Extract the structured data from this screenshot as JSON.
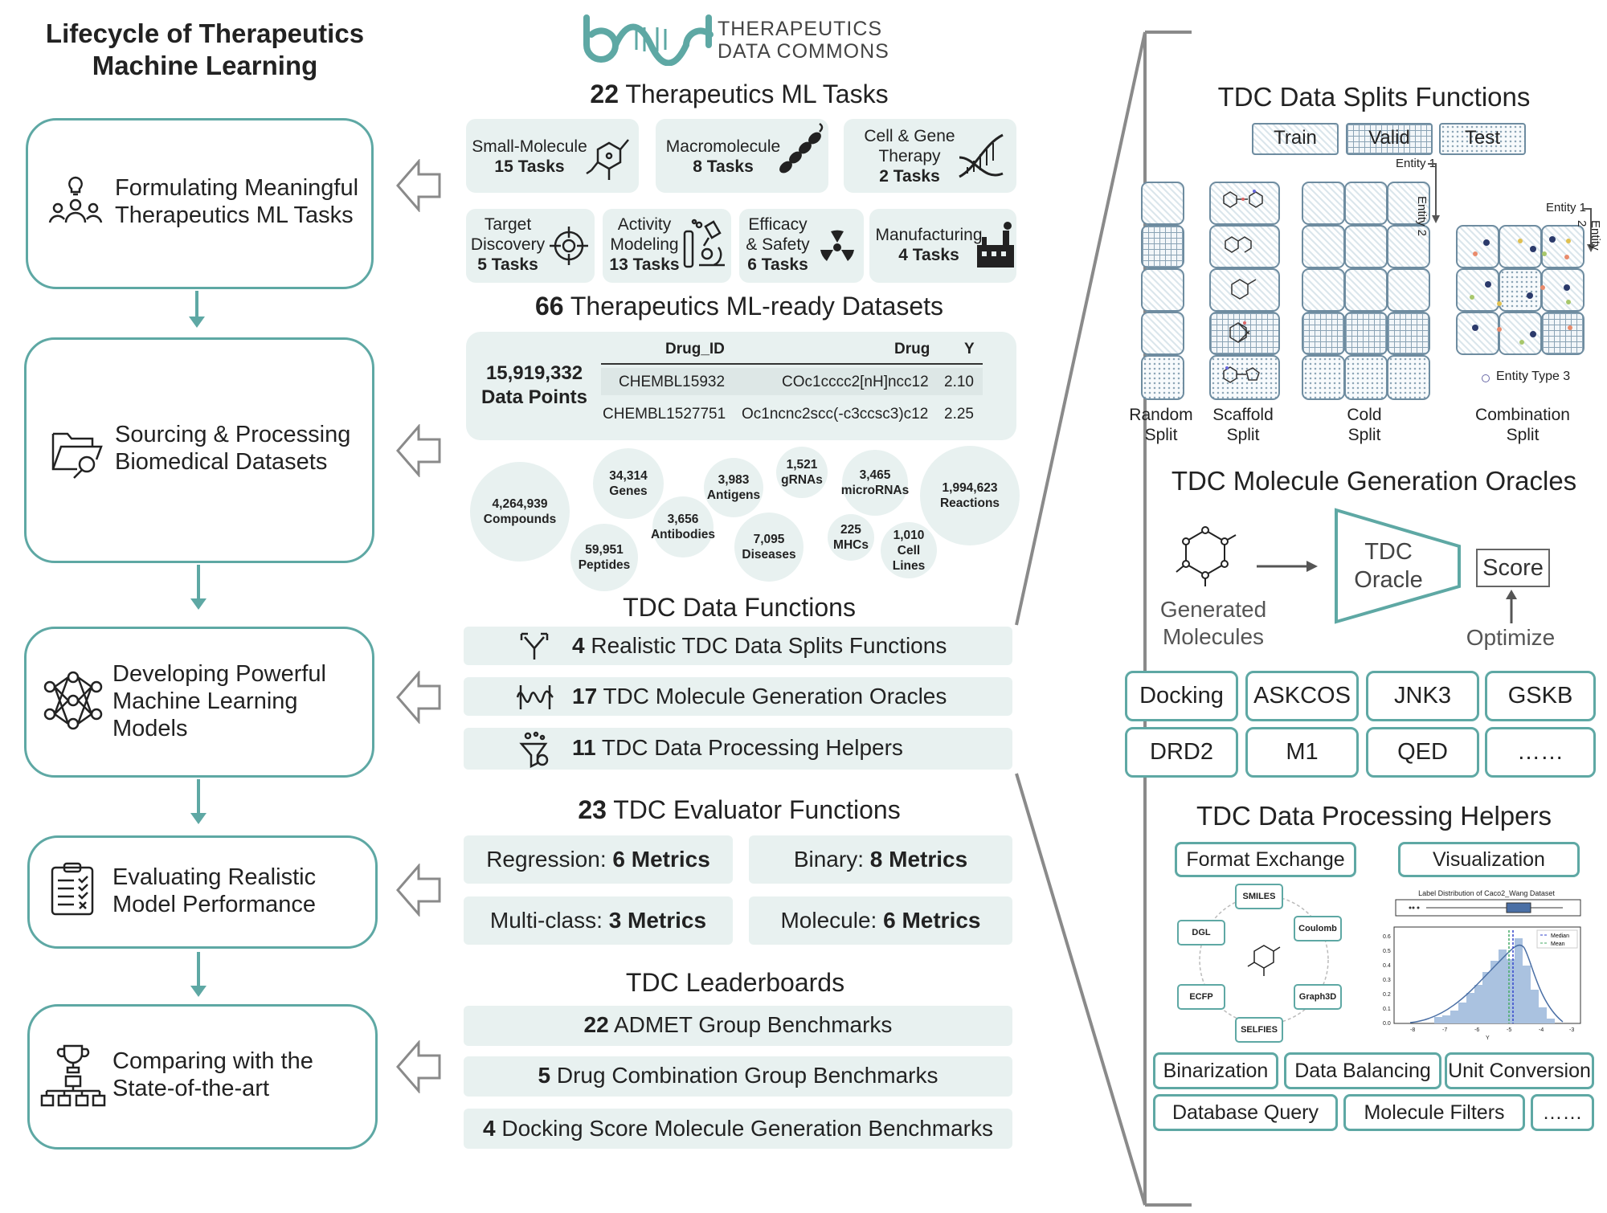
{
  "lifecycle": {
    "title_line1": "Lifecycle of Therapeutics",
    "title_line2": "Machine Learning",
    "stages": [
      {
        "line1": "Formulating Meaningful",
        "line2": "Therapeutics ML Tasks",
        "line3": ""
      },
      {
        "line1": "Sourcing & Processing",
        "line2": "Biomedical Datasets",
        "line3": ""
      },
      {
        "line1": "Developing Powerful",
        "line2": "Machine Learning",
        "line3": "Models"
      },
      {
        "line1": "Evaluating Realistic",
        "line2": "Model Performance",
        "line3": ""
      },
      {
        "line1": "Comparing with the",
        "line2": "State-of-the-art",
        "line3": ""
      }
    ]
  },
  "logo": {
    "line1": "THERAPEUTICS",
    "line2": "DATA COMMONS"
  },
  "tasks": {
    "count": "22",
    "title": "Therapeutics ML Tasks",
    "items": [
      {
        "name": "Small-Molecule",
        "count": "15 Tasks"
      },
      {
        "name": "Macromolecule",
        "count": "8 Tasks"
      },
      {
        "name": "Cell & Gene Therapy",
        "name1": "Cell & Gene",
        "name2": "Therapy",
        "count": "2 Tasks"
      },
      {
        "name1": "Target",
        "name2": "Discovery",
        "count": "5 Tasks"
      },
      {
        "name1": "Activity",
        "name2": "Modeling",
        "count": "13 Tasks"
      },
      {
        "name1": "Efficacy",
        "name2": "& Safety",
        "count": "6 Tasks"
      },
      {
        "name": "Manufacturing",
        "count": "4 Tasks"
      }
    ]
  },
  "datasets": {
    "count": "66",
    "title": "Therapeutics ML-ready Datasets",
    "data_points": "15,919,332",
    "data_points_label": "Data Points",
    "table": {
      "headers": [
        "Drug_ID",
        "Drug",
        "Y"
      ],
      "rows": [
        [
          "CHEMBL15932",
          "COc1cccc2[nH]ncc12",
          "2.10"
        ],
        [
          "CHEMBL1527751",
          "Oc1ncnc2scc(-c3ccsc3)c12",
          "2.25"
        ]
      ]
    },
    "bubbles": [
      {
        "num": "4,264,939",
        "label": "Compounds"
      },
      {
        "num": "34,314",
        "label": "Genes"
      },
      {
        "num": "59,951",
        "label": "Peptides"
      },
      {
        "num": "3,656",
        "label": "Antibodies"
      },
      {
        "num": "3,983",
        "label": "Antigens"
      },
      {
        "num": "1,521",
        "label": "gRNAs"
      },
      {
        "num": "7,095",
        "label": "Diseases"
      },
      {
        "num": "3,465",
        "label": "microRNAs"
      },
      {
        "num": "225",
        "label": "MHCs"
      },
      {
        "num": "1,010",
        "label": "Cell Lines",
        "l1": "Cell",
        "l2": "Lines"
      },
      {
        "num": "1,994,623",
        "label": "Reactions"
      }
    ]
  },
  "functions": {
    "title": "TDC Data Functions",
    "items": [
      {
        "count": "4",
        "text": "Realistic TDC Data Splits Functions"
      },
      {
        "count": "17",
        "text": "TDC Molecule Generation Oracles"
      },
      {
        "count": "11",
        "text": "TDC Data Processing Helpers"
      }
    ]
  },
  "evaluators": {
    "count": "23",
    "title": "TDC Evaluator Functions",
    "items": [
      {
        "name": "Regression: ",
        "metrics": "6 Metrics"
      },
      {
        "name": "Binary: ",
        "metrics": "8 Metrics"
      },
      {
        "name": "Multi-class: ",
        "metrics": "3 Metrics"
      },
      {
        "name": "Molecule: ",
        "metrics": "6 Metrics"
      }
    ]
  },
  "leaderboards": {
    "title": "TDC Leaderboards",
    "items": [
      {
        "count": "22",
        "text": "ADMET Group Benchmarks"
      },
      {
        "count": "5",
        "text": "Drug Combination Group Benchmarks"
      },
      {
        "count": "4",
        "text": "Docking Score Molecule Generation Benchmarks"
      }
    ]
  },
  "splits": {
    "title": "TDC Data Splits Functions",
    "legend": [
      "Train",
      "Valid",
      "Test"
    ],
    "entity1": "Entity 1",
    "entity2": "Entity 2",
    "entity3": "Entity Type 3",
    "labels": [
      {
        "l1": "Random",
        "l2": "Split"
      },
      {
        "l1": "Scaffold",
        "l2": "Split"
      },
      {
        "l1": "Cold",
        "l2": "Split"
      },
      {
        "l1": "Combination",
        "l2": "Split"
      }
    ]
  },
  "oracles": {
    "title": "TDC Molecule Generation Oracles",
    "generated_l1": "Generated",
    "generated_l2": "Molecules",
    "oracle_l1": "TDC",
    "oracle_l2": "Oracle",
    "score": "Score",
    "optimize": "Optimize",
    "boxes": [
      "Docking",
      "ASKCOS",
      "JNK3",
      "GSKB",
      "DRD2",
      "M1",
      "QED",
      "……"
    ]
  },
  "helpers": {
    "title": "TDC Data Processing Helpers",
    "format_exchange": "Format Exchange",
    "visualization": "Visualization",
    "formats": [
      "SMILES",
      "Coulomb",
      "Graph3D",
      "SELFIES",
      "ECFP",
      "DGL"
    ],
    "plot_title": "Label Distribution of Caco2_Wang Dataset",
    "legend": [
      "Median",
      "Mean"
    ],
    "x_ticks": [
      "-8",
      "-7",
      "-6",
      "-5",
      "-4",
      "-3"
    ],
    "y_ticks": [
      "0.0",
      "0.1",
      "0.2",
      "0.3",
      "0.4",
      "0.5",
      "0.6"
    ],
    "x_label": "Y",
    "boxes_row1": [
      "Binarization",
      "Data Balancing",
      "Unit Conversion"
    ],
    "boxes_row2": [
      "Database Query",
      "Molecule Filters",
      "……"
    ]
  },
  "colors": {
    "teal": "#5ea8a4",
    "chip": "#e8f1f0",
    "gray": "#8a8a8a"
  }
}
